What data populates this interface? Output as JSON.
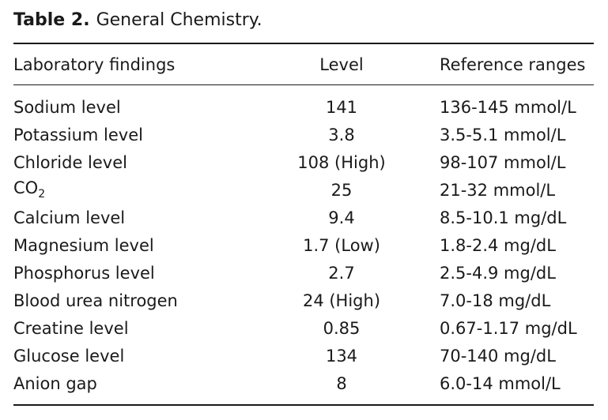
{
  "caption": {
    "label": "Table 2.",
    "title": "General Chemistry."
  },
  "headers": {
    "finding": "Laboratory findings",
    "level": "Level",
    "reference": "Reference ranges"
  },
  "rows": [
    {
      "finding": "Sodium level",
      "level": "141",
      "reference": "136-145 mmol/L",
      "bold": false
    },
    {
      "finding": "Potassium level",
      "level": "3.8",
      "reference": "3.5-5.1 mmol/L",
      "bold": false
    },
    {
      "finding": "Chloride level",
      "level": "108 (High)",
      "reference": "98-107 mmol/L",
      "bold": true
    },
    {
      "finding": "CO",
      "finding_sub": "2",
      "level": "25",
      "reference": "21-32 mmol/L",
      "bold": false
    },
    {
      "finding": "Calcium level",
      "level": "9.4",
      "reference": "8.5-10.1 mg/dL",
      "bold": false
    },
    {
      "finding": "Magnesium level",
      "level": "1.7 (Low)",
      "reference": "1.8-2.4 mg/dL",
      "bold": false
    },
    {
      "finding": "Phosphorus level",
      "level": "2.7",
      "reference": "2.5-4.9 mg/dL",
      "bold": false
    },
    {
      "finding": "Blood urea nitrogen",
      "level": "24 (High)",
      "reference": "7.0-18 mg/dL",
      "bold": true
    },
    {
      "finding": "Creatine level",
      "level": "0.85",
      "reference": "0.67-1.17 mg/dL",
      "bold": false
    },
    {
      "finding": "Glucose level",
      "level": "134",
      "reference": "70-140 mg/dL",
      "bold": false
    },
    {
      "finding": "Anion gap",
      "level": "8",
      "reference": "6.0-14 mmol/L",
      "bold": false
    }
  ]
}
